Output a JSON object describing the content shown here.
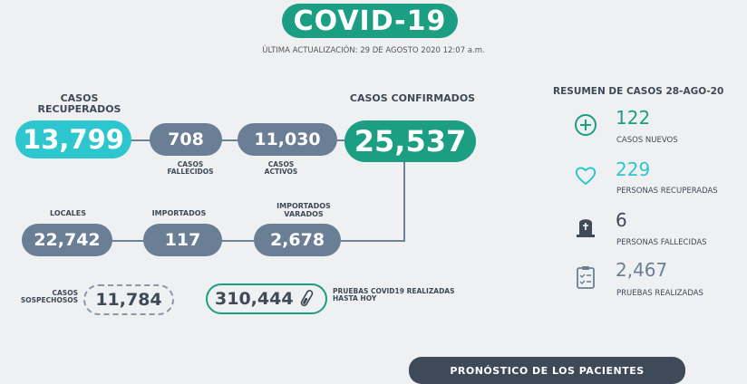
{
  "title": "COVID-19",
  "last_update": "ÚLTIMA ACTUALIZACIÓN: 29 DE AGOSTO 2020 12:07 a.m.",
  "flow": {
    "recovered": {
      "label": "CASOS RECUPERADOS",
      "value": "13,799"
    },
    "deaths": {
      "label": "CASOS FALLECIDOS",
      "value": "708"
    },
    "active": {
      "label": "CASOS ACTIVOS",
      "value": "11,030"
    },
    "confirmed": {
      "label": "CASOS CONFIRMADOS",
      "value": "25,537"
    },
    "local": {
      "label": "LOCALES",
      "value": "22,742"
    },
    "imported": {
      "label": "IMPORTADOS",
      "value": "117"
    },
    "stranded": {
      "label": "IMPORTADOS VARADOS",
      "value": "2,678"
    },
    "suspected": {
      "label": "CASOS SOSPECHOSOS",
      "value": "11,784"
    },
    "tests": {
      "label": "PRUEBAS COVID19 REALIZADAS HASTA HOY",
      "value": "310,444"
    }
  },
  "summary": {
    "title": "RESUMEN DE CASOS 28-AGO-20",
    "items": [
      {
        "value": "122",
        "label": "CASOS NUEVOS",
        "icon": "plus-circle-icon",
        "color": "#1b9e82"
      },
      {
        "value": "229",
        "label": "PERSONAS RECUPERADAS",
        "icon": "heart-icon",
        "color": "#2cc6cf"
      },
      {
        "value": "6",
        "label": "PERSONAS FALLECIDAS",
        "icon": "tombstone-icon",
        "color": "#3e4a57"
      },
      {
        "value": "2,467",
        "label": "PRUEBAS REALIZADAS",
        "icon": "clipboard-icon",
        "color": "#6a7f95"
      }
    ]
  },
  "bottom_banner": {
    "label": "PRONÓSTICO DE LOS PACIENTES"
  },
  "colors": {
    "green": "#1b9e82",
    "cyan": "#2cc6cf",
    "slate": "#6a7f95",
    "background": "#eff0f2"
  }
}
